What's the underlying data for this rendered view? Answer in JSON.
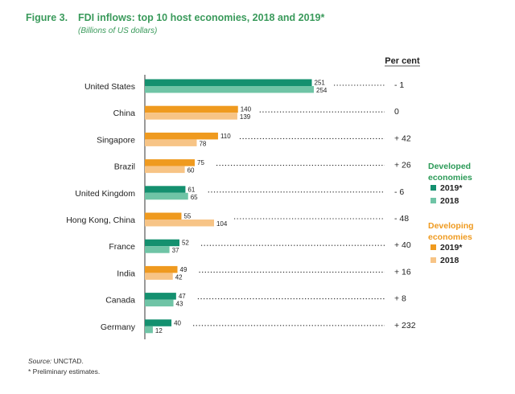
{
  "figure_label": "Figure 3.",
  "source": {
    "label": "Source:",
    "value": " UNCTAD."
  },
  "footnote": "* Preliminary estimates.",
  "colors": {
    "developed_2019": "#14906f",
    "developed_2018": "#6fc4a6",
    "developing_2019": "#ef9a1f",
    "developing_2018": "#f7c486",
    "developed_heading": "#2b9a57",
    "developing_heading": "#ef9a1f",
    "axis": "#333333",
    "text": "#222222"
  },
  "chart_data": {
    "type": "bar",
    "orientation": "horizontal",
    "title": "FDI inflows: top 10 host economies, 2018 and 2019*",
    "subtitle": "(Billions of US dollars)",
    "categories": [
      "United States",
      "China",
      "Singapore",
      "Brazil",
      "United Kingdom",
      "Hong Kong, China",
      "France",
      "India",
      "Canada",
      "Germany"
    ],
    "groups": [
      "developed",
      "developing",
      "developing",
      "developing",
      "developed",
      "developing",
      "developed",
      "developing",
      "developed",
      "developed"
    ],
    "series": [
      {
        "name": "2019*",
        "values": [
          251,
          140,
          110,
          75,
          61,
          55,
          52,
          49,
          47,
          40
        ],
        "labels": [
          "251",
          "140",
          "110",
          "75",
          "61",
          "55",
          "52",
          "49",
          "47",
          "40"
        ]
      },
      {
        "name": "2018",
        "values": [
          254,
          139,
          78,
          60,
          65,
          104,
          37,
          42,
          43,
          12
        ],
        "labels": [
          "254",
          "139",
          "78",
          "60",
          "65",
          "104",
          "37",
          "42",
          "43",
          "12"
        ]
      }
    ],
    "percent_change_header": "Per cent",
    "percent_change": [
      "- 1",
      "0",
      "+ 42",
      "+ 26",
      "- 6",
      "- 48",
      "+ 40",
      "+ 16",
      "+ 8",
      "+ 232"
    ],
    "xlim": [
      0,
      254
    ],
    "legend": {
      "position": "right",
      "groups": [
        {
          "key": "developed",
          "heading_lines": [
            "Developed",
            "economies"
          ],
          "items": [
            "2019*",
            "2018"
          ]
        },
        {
          "key": "developing",
          "heading_lines": [
            "Developing",
            "economies"
          ],
          "items": [
            "2019*",
            "2018"
          ]
        }
      ]
    }
  }
}
